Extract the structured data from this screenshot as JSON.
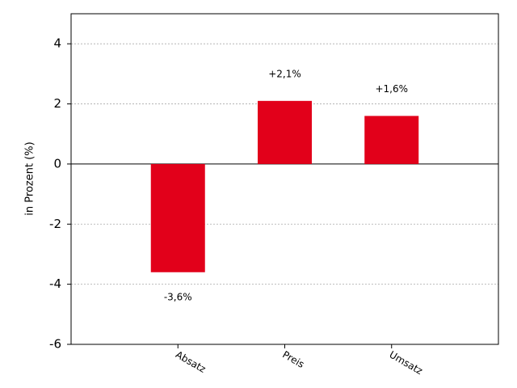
{
  "chart_data": {
    "type": "bar",
    "y_label": "in Prozent (%)",
    "categories": [
      "Absatz",
      "Preis",
      "Umsatz"
    ],
    "values": [
      -3.6,
      2.1,
      1.6
    ],
    "value_labels": [
      "-3,6%",
      "+2,1%",
      "+1,6%"
    ],
    "color": "#e2001a",
    "ylim": [
      -6,
      5
    ],
    "yticks": [
      -6,
      -4,
      -2,
      0,
      2,
      4
    ],
    "grid": true
  }
}
